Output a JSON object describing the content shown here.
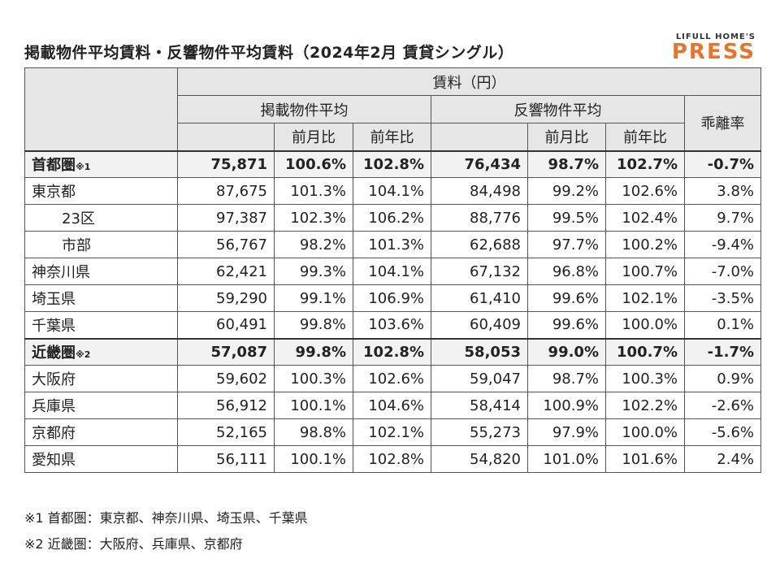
{
  "title": "掲載物件平均賃料・反響物件平均賃料（2024年2月 賃貸シングル）",
  "logo": {
    "top": "LIFULL HOME'S",
    "bottom": "PRESS"
  },
  "header": {
    "rent": "賃料（円）",
    "listed": "掲載物件平均",
    "response": "反響物件平均",
    "gap": "乖離率",
    "mom": "前月比",
    "yoy": "前年比"
  },
  "rows": [
    {
      "name": "首都圏",
      "note": "※1",
      "bold": true,
      "indent": false,
      "v": [
        "75,871",
        "100.6%",
        "102.8%",
        "76,434",
        "98.7%",
        "102.7%",
        "-0.7%"
      ]
    },
    {
      "name": "東京都",
      "note": "",
      "bold": false,
      "indent": false,
      "v": [
        "87,675",
        "101.3%",
        "104.1%",
        "84,498",
        "99.2%",
        "102.6%",
        "3.8%"
      ]
    },
    {
      "name": "23区",
      "note": "",
      "bold": false,
      "indent": true,
      "v": [
        "97,387",
        "102.3%",
        "106.2%",
        "88,776",
        "99.5%",
        "102.4%",
        "9.7%"
      ]
    },
    {
      "name": "市部",
      "note": "",
      "bold": false,
      "indent": true,
      "v": [
        "56,767",
        "98.2%",
        "101.3%",
        "62,688",
        "97.7%",
        "100.2%",
        "-9.4%"
      ]
    },
    {
      "name": "神奈川県",
      "note": "",
      "bold": false,
      "indent": false,
      "v": [
        "62,421",
        "99.3%",
        "104.1%",
        "67,132",
        "96.8%",
        "100.7%",
        "-7.0%"
      ]
    },
    {
      "name": "埼玉県",
      "note": "",
      "bold": false,
      "indent": false,
      "v": [
        "59,290",
        "99.1%",
        "106.9%",
        "61,410",
        "99.6%",
        "102.1%",
        "-3.5%"
      ]
    },
    {
      "name": "千葉県",
      "note": "",
      "bold": false,
      "indent": false,
      "v": [
        "60,491",
        "99.8%",
        "103.6%",
        "60,409",
        "99.6%",
        "100.0%",
        "0.1%"
      ]
    },
    {
      "name": "近畿圏",
      "note": "※2",
      "bold": true,
      "indent": false,
      "v": [
        "57,087",
        "99.8%",
        "102.8%",
        "58,053",
        "99.0%",
        "100.7%",
        "-1.7%"
      ]
    },
    {
      "name": "大阪府",
      "note": "",
      "bold": false,
      "indent": false,
      "v": [
        "59,602",
        "100.3%",
        "102.6%",
        "59,047",
        "98.7%",
        "100.3%",
        "0.9%"
      ]
    },
    {
      "name": "兵庫県",
      "note": "",
      "bold": false,
      "indent": false,
      "v": [
        "56,912",
        "100.1%",
        "104.6%",
        "58,414",
        "100.9%",
        "102.2%",
        "-2.6%"
      ]
    },
    {
      "name": "京都府",
      "note": "",
      "bold": false,
      "indent": false,
      "v": [
        "52,165",
        "98.8%",
        "102.1%",
        "55,273",
        "97.9%",
        "100.0%",
        "-5.6%"
      ]
    },
    {
      "name": "愛知県",
      "note": "",
      "bold": false,
      "indent": false,
      "v": [
        "56,111",
        "100.1%",
        "102.8%",
        "54,820",
        "101.0%",
        "101.6%",
        "2.4%"
      ]
    }
  ],
  "footnotes": [
    "※1 首都圏：東京都、神奈川県、埼玉県、千葉県",
    "※2 近畿圏：大阪府、兵庫県、京都府"
  ]
}
